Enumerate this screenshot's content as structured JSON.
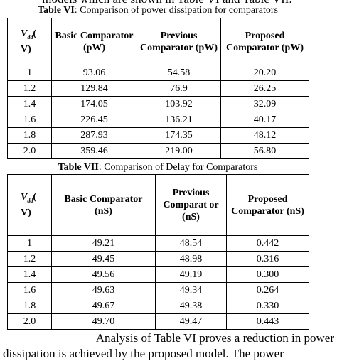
{
  "intro_line": "models which are shown in Table VI and Table VII.",
  "tables": [
    {
      "caption_label": "Table VI",
      "caption_text": ": Comparison of power dissipation for comparators",
      "header_first": {
        "symbol": "V",
        "sub": "dd",
        "tail": "(",
        "unit": "V)"
      },
      "headers": [
        "Basic Comparator (pW)",
        "Previous Comparator (pW)",
        "Proposed Comparator (pW)"
      ],
      "rows": [
        [
          "1",
          "93.06",
          "54.58",
          "20.20"
        ],
        [
          "1.2",
          "129.84",
          "76.9",
          "26.25"
        ],
        [
          "1.4",
          "174.05",
          "103.92",
          "32.09"
        ],
        [
          "1.6",
          "226.45",
          "136.21",
          "40.17"
        ],
        [
          "1.8",
          "287.93",
          "174.35",
          "48.12"
        ],
        [
          "2.0",
          "359.46",
          "219.00",
          "56.80"
        ]
      ]
    },
    {
      "caption_label": "Table VII",
      "caption_text": ": Comparison of Delay for Comparators",
      "header_first": {
        "symbol": "V",
        "sub": "dd",
        "tail": "(",
        "unit": "V)"
      },
      "headers": [
        "Basic Comparator (nS)",
        "Previous Comparat or  (nS)",
        "Proposed Comparator (nS)"
      ],
      "rows": [
        [
          "1",
          "49.21",
          "48.54",
          "0.442"
        ],
        [
          "1.2",
          "49.45",
          "48.98",
          "0.316"
        ],
        [
          "1.4",
          "49.56",
          "49.19",
          "0.300"
        ],
        [
          "1.6",
          "49.63",
          "49.34",
          "0.264"
        ],
        [
          "1.8",
          "49.67",
          "49.38",
          "0.330"
        ],
        [
          "2.0",
          "49.70",
          "49.47",
          "0.443"
        ]
      ]
    }
  ],
  "body_lines": [
    "Analysis of Table VI proves a reduction in power",
    "dissipation is achieved by the proposed model. The power"
  ]
}
